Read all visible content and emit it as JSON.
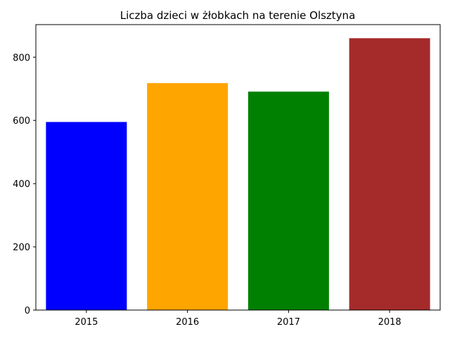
{
  "chart_data": {
    "type": "bar",
    "title": "Liczba dzieci w żłobkach na terenie Olsztyna",
    "xlabel": "",
    "ylabel": "",
    "categories": [
      "2015",
      "2016",
      "2017",
      "2018"
    ],
    "values": [
      595,
      718,
      691,
      860
    ],
    "colors": [
      "#0000ff",
      "#ffa500",
      "#008000",
      "#a52a2a"
    ],
    "ylim": [
      0,
      903
    ],
    "yticks": [
      0,
      200,
      400,
      600,
      800
    ],
    "grid": false,
    "legend": "none"
  }
}
